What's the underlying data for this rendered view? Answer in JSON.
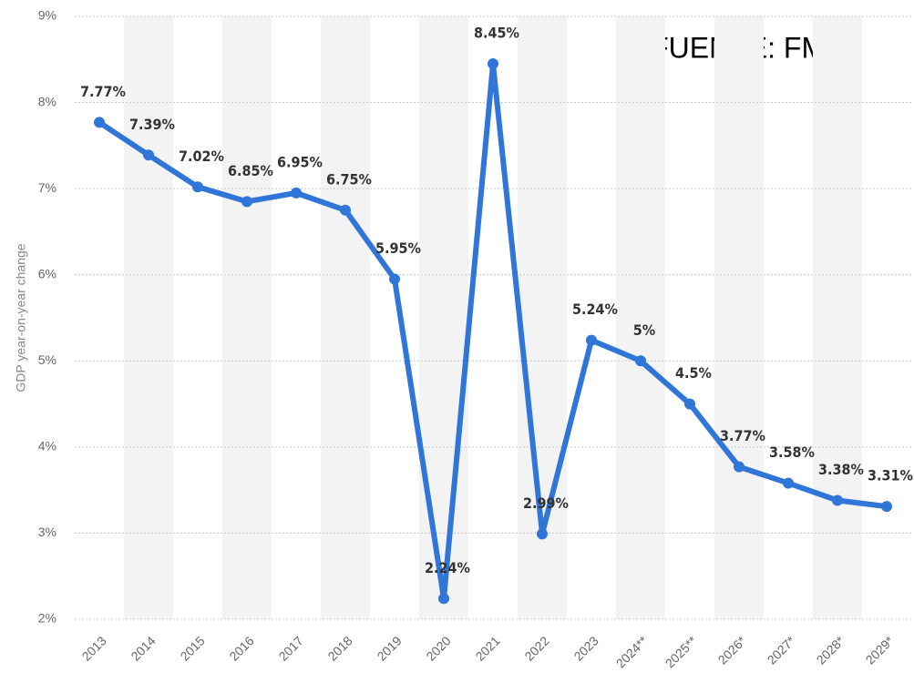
{
  "chart_data": {
    "type": "line",
    "y_label": "GDP year-on-year change",
    "annotation": "FUENTE: FMI",
    "categories": [
      "2013",
      "2014",
      "2015",
      "2016",
      "2017",
      "2018",
      "2019",
      "2020",
      "2021",
      "2022",
      "2023",
      "2024**",
      "2025**",
      "2026*",
      "2027*",
      "2028*",
      "2029*"
    ],
    "series": [
      {
        "name": "GDP year-on-year change",
        "color": "#2f76d8",
        "values": [
          7.77,
          7.39,
          7.02,
          6.85,
          6.95,
          6.75,
          5.95,
          2.24,
          8.45,
          2.99,
          5.24,
          5,
          4.5,
          3.77,
          3.58,
          3.38,
          3.31
        ],
        "value_labels": [
          "7.77%",
          "7.39%",
          "7.02%",
          "6.85%",
          "6.95%",
          "6.75%",
          "5.95%",
          "2.24%",
          "8.45%",
          "2.99%",
          "5.24%",
          "5%",
          "4.5%",
          "3.77%",
          "3.58%",
          "3.38%",
          "3.31%"
        ]
      }
    ],
    "ylim": [
      2,
      9
    ],
    "yticks": [
      {
        "value": 2,
        "label": "2%"
      },
      {
        "value": 3,
        "label": "3%"
      },
      {
        "value": 4,
        "label": "4%"
      },
      {
        "value": 5,
        "label": "5%"
      },
      {
        "value": 6,
        "label": "6%"
      },
      {
        "value": 7,
        "label": "7%"
      },
      {
        "value": 8,
        "label": "8%"
      },
      {
        "value": 9,
        "label": "9%"
      }
    ],
    "grid": true,
    "alternating_bands": true
  }
}
